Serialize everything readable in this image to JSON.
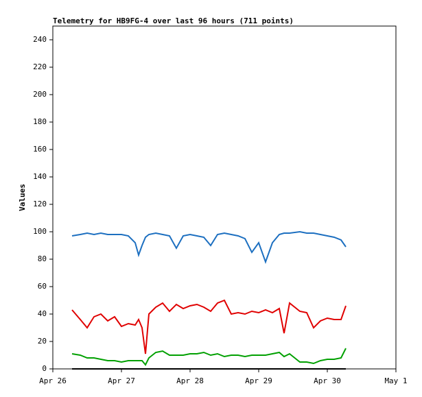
{
  "chart_data": {
    "type": "line",
    "title": "Telemetry for HB9FG-4 over last 96 hours (711 points)",
    "y_label": "Values",
    "x": [
      0.28,
      0.4,
      0.5,
      0.6,
      0.7,
      0.8,
      0.9,
      1.0,
      1.1,
      1.2,
      1.25,
      1.3,
      1.35,
      1.4,
      1.5,
      1.6,
      1.7,
      1.8,
      1.9,
      2.0,
      2.1,
      2.2,
      2.3,
      2.4,
      2.5,
      2.6,
      2.7,
      2.8,
      2.9,
      3.0,
      3.1,
      3.2,
      3.3,
      3.37,
      3.45,
      3.6,
      3.7,
      3.8,
      3.9,
      4.0,
      4.1,
      4.2,
      4.27
    ],
    "series": [
      {
        "color": "#1c6fc0",
        "values": [
          97,
          98,
          99,
          98,
          99,
          98,
          98,
          98,
          97,
          92,
          83,
          90,
          96,
          98,
          99,
          98,
          97,
          88,
          97,
          98,
          97,
          96,
          90,
          98,
          99,
          98,
          97,
          95,
          85,
          92,
          78,
          92,
          98,
          99,
          99,
          100,
          99,
          99,
          98,
          97,
          96,
          94,
          89
        ]
      },
      {
        "color": "#e00000",
        "values": [
          43,
          36,
          30,
          38,
          40,
          35,
          38,
          31,
          33,
          32,
          36,
          30,
          11,
          40,
          45,
          48,
          42,
          47,
          44,
          46,
          47,
          45,
          42,
          48,
          50,
          40,
          41,
          40,
          42,
          41,
          43,
          41,
          44,
          26,
          48,
          42,
          41,
          30,
          35,
          37,
          36,
          36,
          46
        ]
      },
      {
        "color": "#00a000",
        "values": [
          11,
          10,
          8,
          8,
          7,
          6,
          6,
          5,
          6,
          6,
          6,
          6,
          3,
          8,
          12,
          13,
          10,
          10,
          10,
          11,
          11,
          12,
          10,
          11,
          9,
          10,
          10,
          9,
          10,
          10,
          10,
          11,
          12,
          9,
          11,
          5,
          5,
          4,
          6,
          7,
          7,
          8,
          15
        ]
      },
      {
        "color": "#000000",
        "values": [
          0,
          0,
          0,
          0,
          0,
          0,
          0,
          0,
          0,
          0,
          0,
          0,
          0,
          0,
          0,
          0,
          0,
          0,
          0,
          0,
          0,
          0,
          0,
          0,
          0,
          0,
          0,
          0,
          0,
          0,
          0,
          0,
          0,
          0,
          0,
          0,
          0,
          0,
          0,
          0,
          0,
          0,
          0
        ]
      }
    ],
    "xlim": [
      0,
      5
    ],
    "xticks": [
      {
        "value": 0,
        "label": "Apr 26"
      },
      {
        "value": 1,
        "label": "Apr 27"
      },
      {
        "value": 2,
        "label": "Apr 28"
      },
      {
        "value": 3,
        "label": "Apr 29"
      },
      {
        "value": 4,
        "label": "Apr 30"
      },
      {
        "value": 5,
        "label": "May 1"
      }
    ],
    "ylim": [
      0,
      250
    ],
    "yticks": [
      0,
      20,
      40,
      60,
      80,
      100,
      120,
      140,
      160,
      180,
      200,
      220,
      240
    ]
  }
}
